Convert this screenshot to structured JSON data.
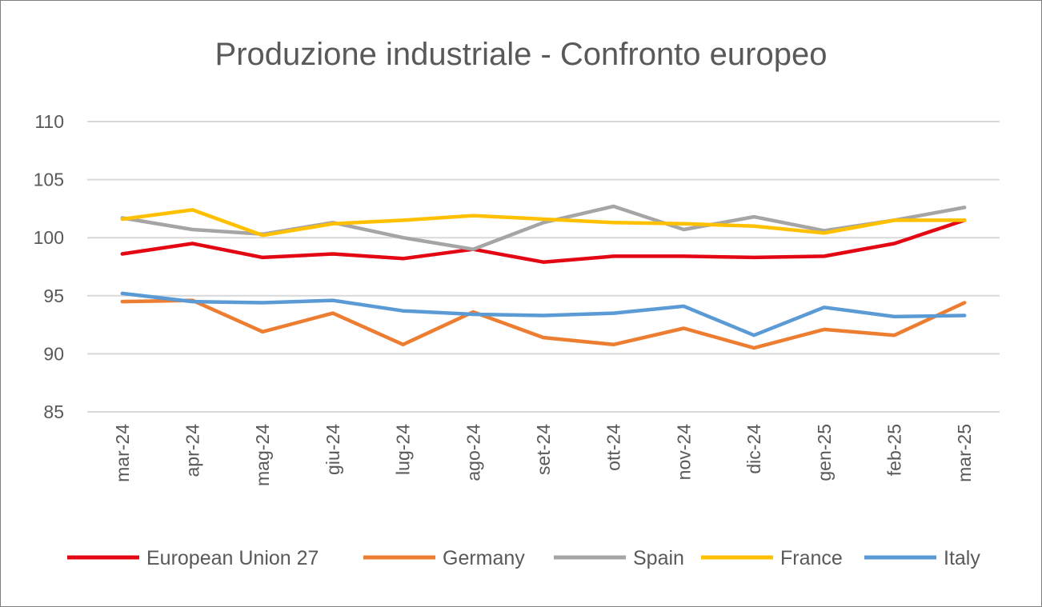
{
  "chart_data": {
    "type": "line",
    "title": "Produzione industriale - Confronto europeo",
    "xlabel": "",
    "ylabel": "",
    "ylim": [
      85,
      110
    ],
    "yticks": [
      "85",
      "90",
      "95",
      "100",
      "105",
      "110"
    ],
    "grid": true,
    "legend_position": "bottom",
    "categories": [
      "mar-24",
      "apr-24",
      "mag-24",
      "giu-24",
      "lug-24",
      "ago-24",
      "set-24",
      "ott-24",
      "nov-24",
      "dic-24",
      "gen-25",
      "feb-25",
      "mar-25"
    ],
    "series": [
      {
        "name": "European Union 27",
        "color": "#e30613",
        "values": [
          98.6,
          99.5,
          98.3,
          98.6,
          98.2,
          99.0,
          97.9,
          98.4,
          98.4,
          98.3,
          98.4,
          99.5,
          101.5
        ]
      },
      {
        "name": "Germany",
        "color": "#ed7d31",
        "values": [
          94.5,
          94.6,
          91.9,
          93.5,
          90.8,
          93.6,
          91.4,
          90.8,
          92.2,
          90.5,
          92.1,
          91.6,
          94.4
        ]
      },
      {
        "name": "Spain",
        "color": "#a5a5a5",
        "values": [
          101.7,
          100.7,
          100.3,
          101.3,
          100.0,
          99.0,
          101.3,
          102.7,
          100.7,
          101.8,
          100.6,
          101.5,
          102.6
        ]
      },
      {
        "name": "France",
        "color": "#ffc000",
        "values": [
          101.6,
          102.4,
          100.2,
          101.2,
          101.5,
          101.9,
          101.6,
          101.3,
          101.2,
          101.0,
          100.4,
          101.5,
          101.5
        ]
      },
      {
        "name": "Italy",
        "color": "#5b9bd5",
        "values": [
          95.2,
          94.5,
          94.4,
          94.6,
          93.7,
          93.4,
          93.3,
          93.5,
          94.1,
          91.6,
          94.0,
          93.2,
          93.3
        ]
      }
    ]
  }
}
